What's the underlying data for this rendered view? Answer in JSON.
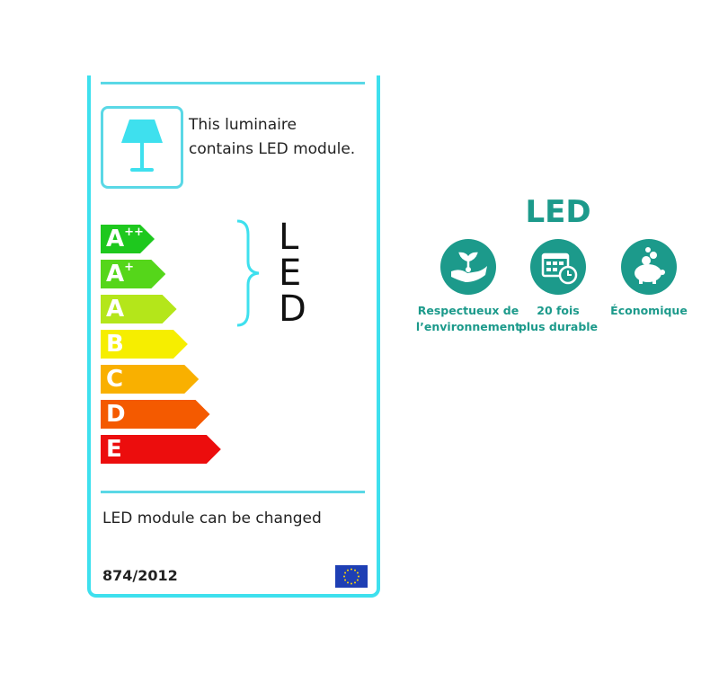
{
  "label": {
    "luminaire_text_line1": "This luminaire",
    "luminaire_text_line2": "contains LED module.",
    "classes": [
      {
        "letter": "A",
        "sup": "++",
        "color": "#1ec81e"
      },
      {
        "letter": "A",
        "sup": "+",
        "color": "#55d61a"
      },
      {
        "letter": "A",
        "sup": "",
        "color": "#b4e61a"
      },
      {
        "letter": "B",
        "sup": "",
        "color": "#f6ee00"
      },
      {
        "letter": "C",
        "sup": "",
        "color": "#f9b000"
      },
      {
        "letter": "D",
        "sup": "",
        "color": "#f45a00"
      },
      {
        "letter": "E",
        "sup": "",
        "color": "#ec0d0d"
      }
    ],
    "compatible_letters": [
      "L",
      "E",
      "D"
    ],
    "module_text": "LED module can be changed",
    "regulation": "874/2012"
  },
  "features": {
    "title": "LED",
    "accent": "#1c9a8b",
    "items": [
      {
        "icon": "hand-plant-icon",
        "line1": "Respectueux de",
        "line2": "l’environnement"
      },
      {
        "icon": "calendar-clock-icon",
        "line1": "20 fois",
        "line2": "plus durable"
      },
      {
        "icon": "piggy-bank-icon",
        "line1": "Économique",
        "line2": ""
      }
    ]
  }
}
